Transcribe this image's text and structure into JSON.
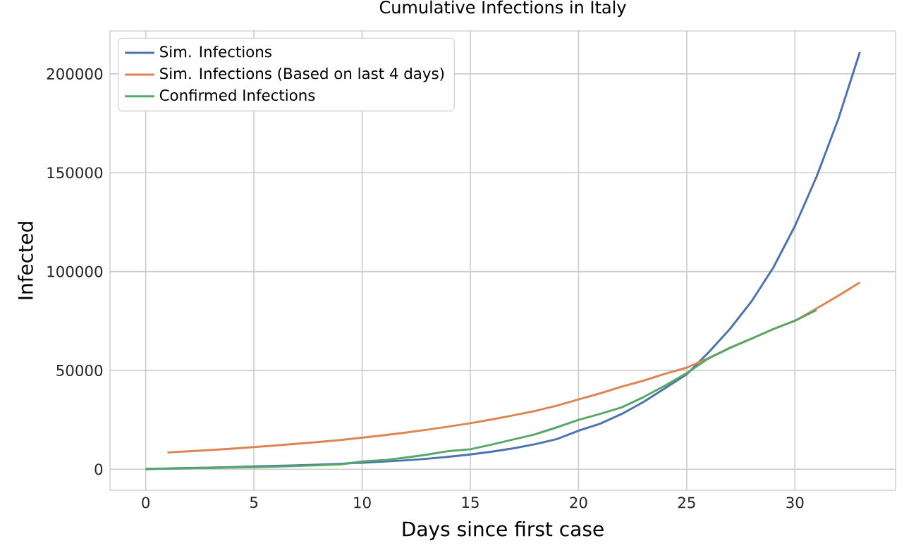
{
  "chart_data": {
    "type": "line",
    "title": "Cumulative Infections in Italy",
    "xlabel": "Days since first case",
    "ylabel": "Infected",
    "xlim": [
      -1.65,
      34.65
    ],
    "ylim": [
      -10600,
      221700
    ],
    "xticks": [
      0,
      5,
      10,
      15,
      20,
      25,
      30
    ],
    "yticks": [
      0,
      50000,
      100000,
      150000,
      200000
    ],
    "grid": true,
    "legend": "top left",
    "marker": "none",
    "line_style": "solid",
    "series": [
      {
        "name": "Sim. Infections",
        "color": "#4c72b0",
        "x": [
          0,
          1,
          2,
          3,
          4,
          5,
          6,
          7,
          8,
          9,
          10,
          11,
          12,
          13,
          14,
          15,
          16,
          17,
          18,
          19,
          20,
          21,
          22,
          23,
          24,
          25,
          26,
          27,
          28,
          29,
          30,
          31,
          32,
          33
        ],
        "values": [
          200,
          400,
          600,
          800,
          1100,
          1400,
          1700,
          2000,
          2300,
          2800,
          3300,
          3900,
          4500,
          5300,
          6300,
          7500,
          8900,
          10600,
          12700,
          15300,
          19500,
          23000,
          28000,
          34000,
          41000,
          48000,
          59000,
          71000,
          85000,
          102000,
          123000,
          148000,
          177000,
          211000
        ]
      },
      {
        "name": "Sim. Infections (Based on last 4 days)",
        "color": "#dd8452",
        "x": [
          1,
          2,
          3,
          4,
          5,
          6,
          7,
          8,
          9,
          10,
          11,
          12,
          13,
          14,
          15,
          16,
          17,
          18,
          19,
          20,
          21,
          22,
          23,
          24,
          25,
          26,
          27,
          28,
          29,
          30,
          31,
          32,
          33
        ],
        "values": [
          8500,
          9100,
          9700,
          10400,
          11200,
          12000,
          12900,
          13800,
          14800,
          16000,
          17200,
          18500,
          20000,
          21600,
          23300,
          25200,
          27300,
          29500,
          32200,
          35300,
          38400,
          41800,
          44800,
          48300,
          51400,
          56200,
          61400,
          66100,
          70900,
          75100,
          81300,
          87700,
          94500
        ]
      },
      {
        "name": "Confirmed Infections",
        "color": "#55a868",
        "x": [
          0,
          1,
          2,
          3,
          4,
          5,
          6,
          7,
          8,
          9,
          10,
          11,
          12,
          13,
          14,
          15,
          16,
          17,
          18,
          19,
          20,
          21,
          22,
          23,
          24,
          25,
          26,
          27,
          28,
          29,
          30,
          31
        ],
        "values": [
          0,
          300,
          500,
          700,
          900,
          1100,
          1300,
          1700,
          2000,
          2500,
          3900,
          4600,
          5900,
          7400,
          9200,
          10100,
          12500,
          15100,
          17700,
          21200,
          25000,
          28000,
          31300,
          36500,
          42300,
          48600,
          56000,
          61400,
          66100,
          70900,
          75100,
          80500
        ]
      }
    ]
  }
}
